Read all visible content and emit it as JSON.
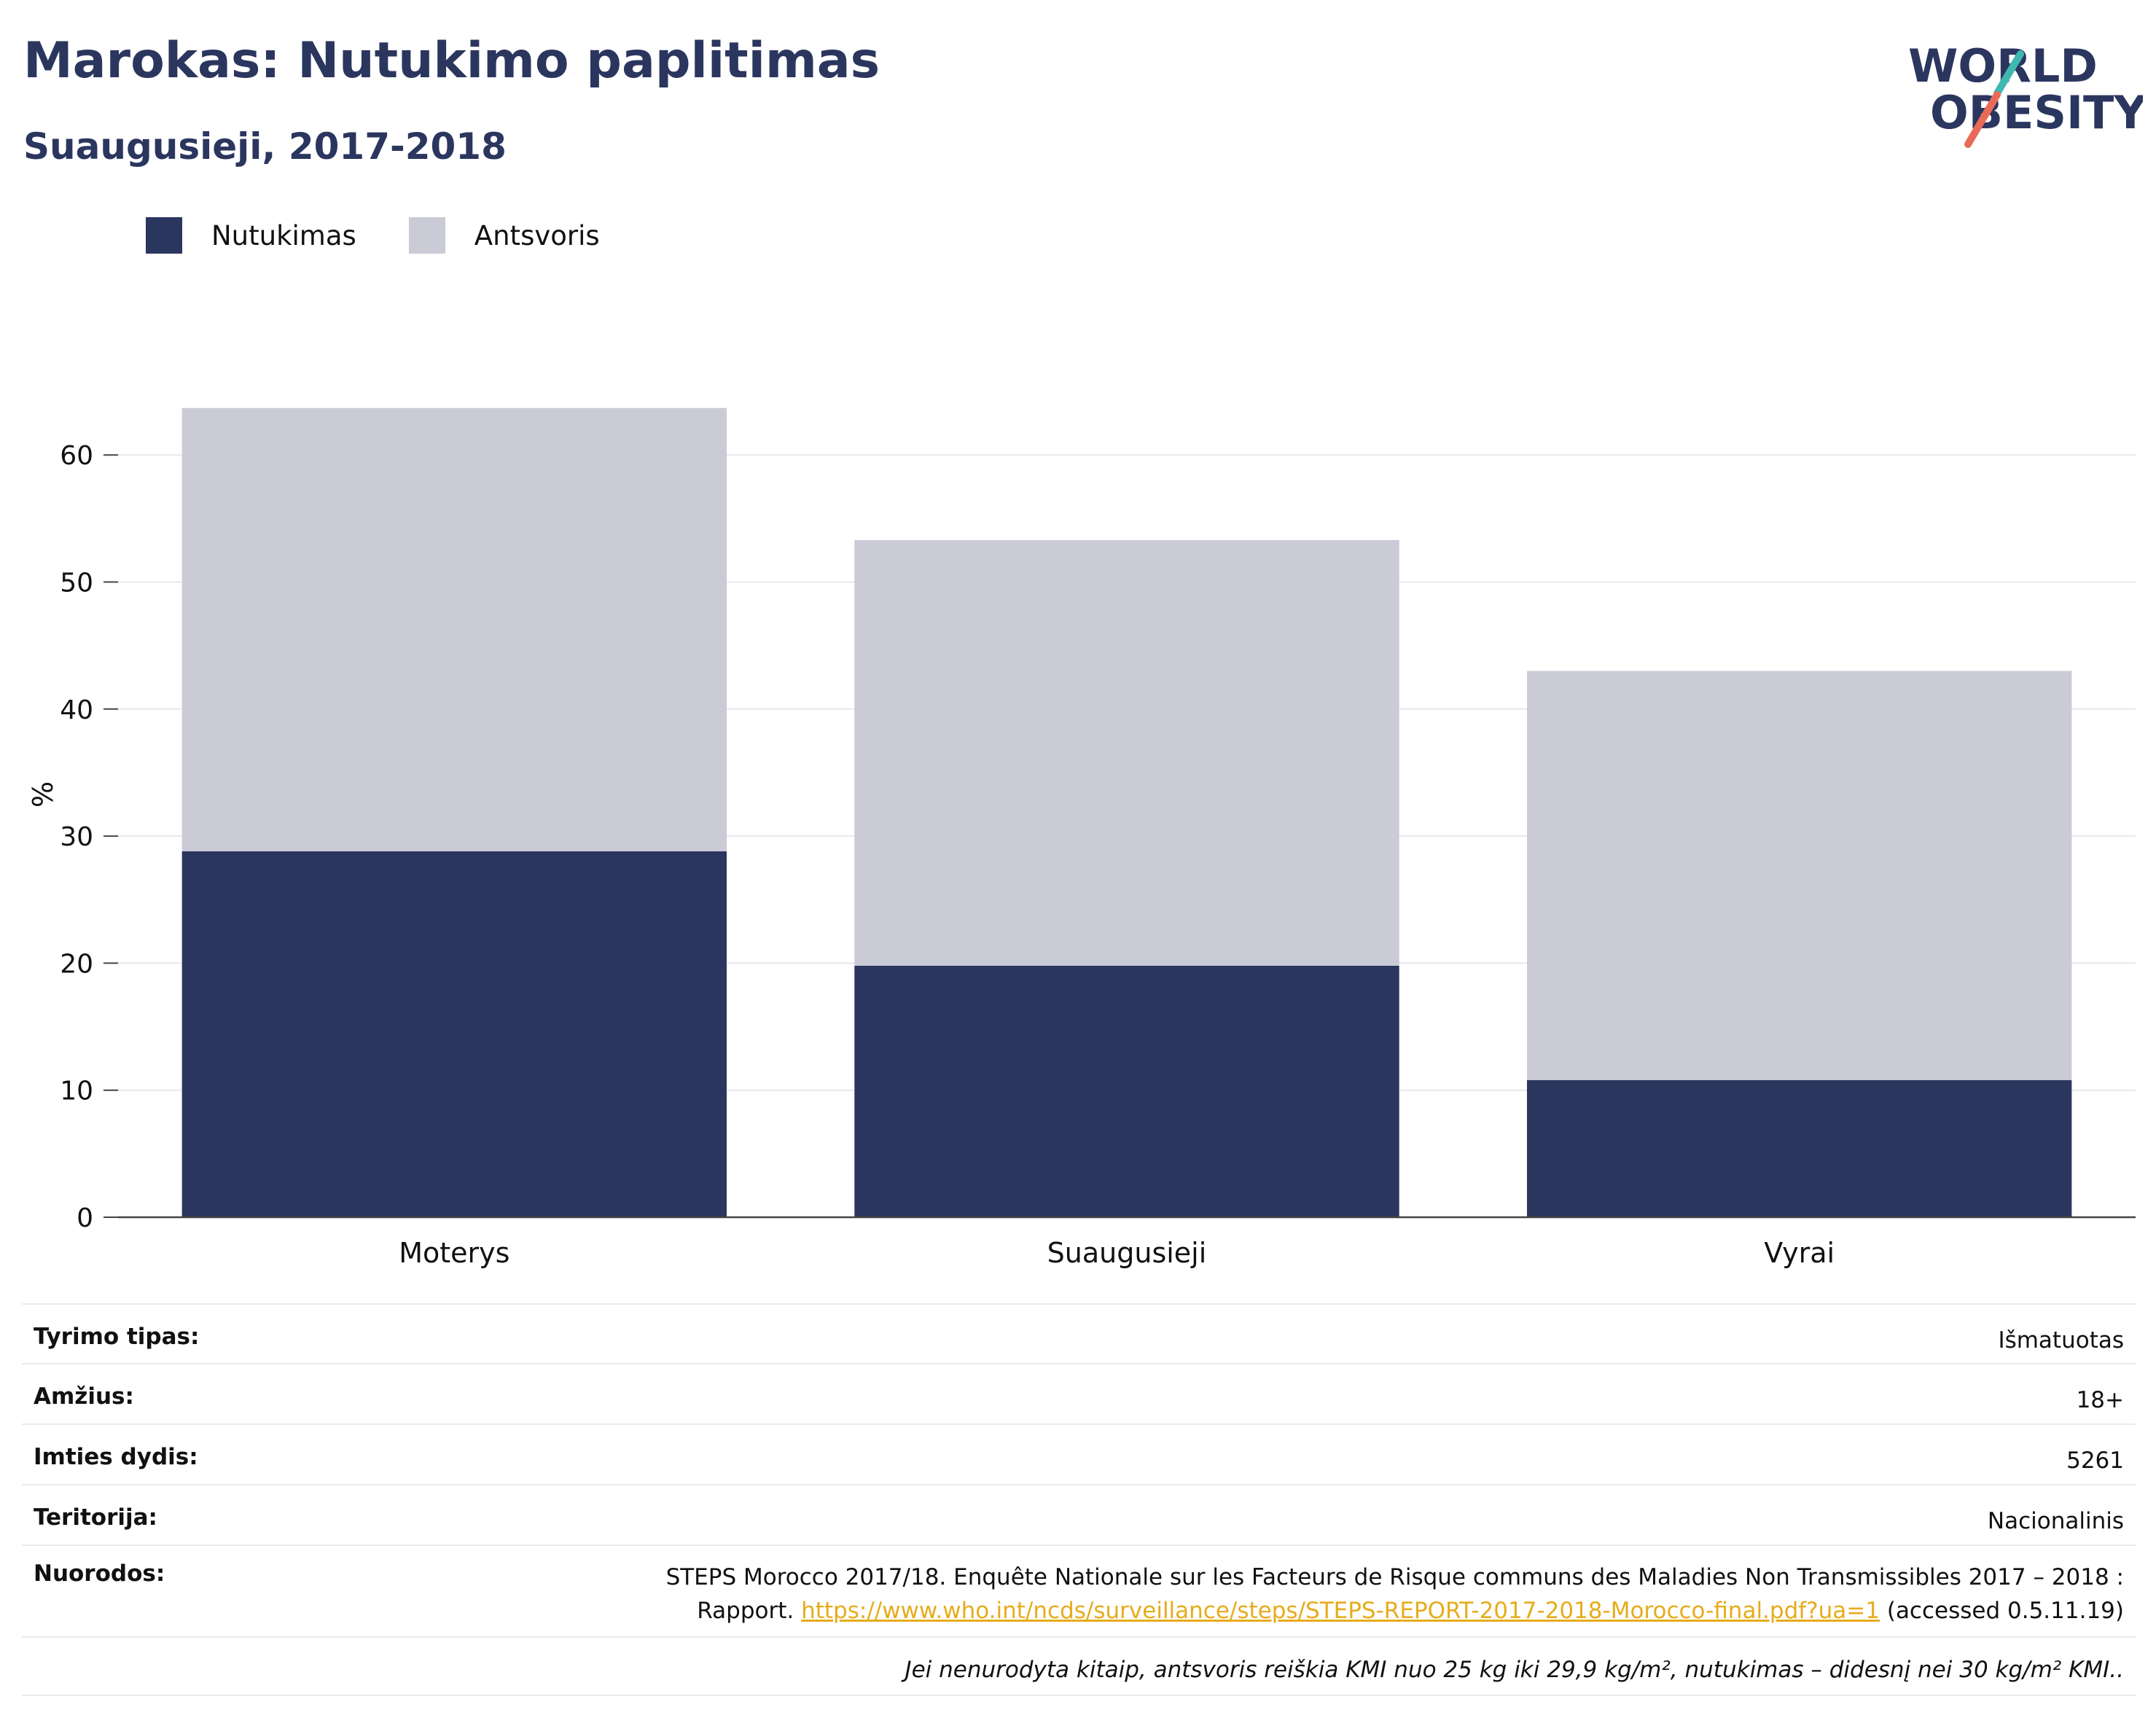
{
  "header": {
    "title": "Marokas: Nutukimo paplitimas",
    "subtitle": "Suaugusieji, 2017-2018"
  },
  "logo": {
    "line1": "WORLD",
    "line2": "OBESITY"
  },
  "colors": {
    "obesity": "#2b365f",
    "overweight": "#cacbd6",
    "title": "#2b365f",
    "link": "#e6ac1c"
  },
  "chart_data": {
    "type": "bar",
    "stacked": true,
    "categories": [
      "Moterys",
      "Suaugusieji",
      "Vyrai"
    ],
    "series": [
      {
        "name": "Nutukimas",
        "values": [
          28.8,
          19.8,
          10.8
        ]
      },
      {
        "name": "Antsvoris",
        "values": [
          34.9,
          33.5,
          32.2
        ]
      }
    ],
    "ylabel": "%",
    "ylim": [
      0,
      65
    ],
    "yticks": [
      0,
      10,
      20,
      30,
      40,
      50,
      60
    ],
    "grid": true,
    "legend": "top-left"
  },
  "info": {
    "rows": [
      {
        "label": "Tyrimo tipas:",
        "value": "Išmatuotas"
      },
      {
        "label": "Amžius:",
        "value": "18+"
      },
      {
        "label": "Imties dydis:",
        "value": "5261"
      },
      {
        "label": "Teritorija:",
        "value": "Nacionalinis"
      }
    ],
    "references": {
      "label": "Nuorodos:",
      "line1": "STEPS Morocco 2017/18. Enquête Nationale sur les Facteurs de Risque communs des Maladies Non Transmissibles 2017 – 2018 :",
      "line2_prefix": "Rapport.",
      "link": "https://www.who.int/ncds/surveillance/steps/STEPS-REPORT-2017-2018-Morocco-final.pdf?ua=1",
      "suffix": "(accessed 0.5.11.19)"
    },
    "note": "Jei nenurodyta kitaip, antsvoris reiškia KMI nuo 25 kg iki 29,9 kg/m², nutukimas – didesnį nei 30 kg/m² KMI.."
  }
}
